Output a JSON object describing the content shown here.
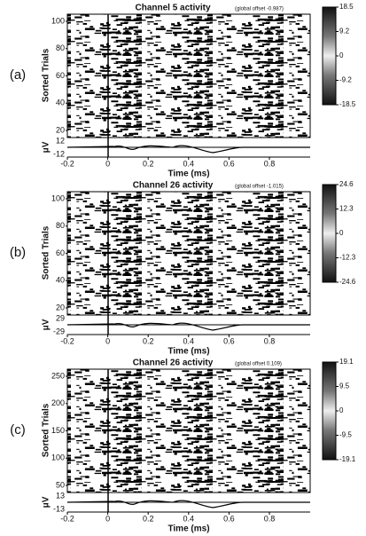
{
  "panels": [
    {
      "label": "(a)",
      "title": "Channel 5 activity",
      "note": "(global offset -0.987)",
      "y_label": "Sorted Trials",
      "y_ticks": [
        "100",
        "80",
        "60",
        "40",
        "20"
      ],
      "erp_label": "μV",
      "erp_ticks": [
        "12",
        "-12"
      ],
      "x_ticks": [
        "-0.2",
        "0",
        "0.2",
        "0.4",
        "0.6",
        "0.8"
      ],
      "x_label": "Time (ms)",
      "colorbar_ticks": [
        "18.5",
        "9.2",
        "0",
        "-9.2",
        "-18.5"
      ]
    },
    {
      "label": "(b)",
      "title": "Channel 26 activity",
      "note": "(global offset -1.015)",
      "y_label": "Sorted Trials",
      "y_ticks": [
        "100",
        "80",
        "60",
        "40",
        "20"
      ],
      "erp_label": "μV",
      "erp_ticks": [
        "29",
        "-29"
      ],
      "x_ticks": [
        "-0.2",
        "0",
        "0.2",
        "0.4",
        "0.6",
        "0.8"
      ],
      "x_label": "Time (ms)",
      "colorbar_ticks": [
        "24.6",
        "12.3",
        "0",
        "-12.3",
        "-24.6"
      ]
    },
    {
      "label": "(c)",
      "title": "Channel 26 activity",
      "note": "(global offset 0.109)",
      "y_label": "Sorted Trials",
      "y_ticks": [
        "250",
        "200",
        "150",
        "100",
        "50"
      ],
      "erp_label": "μV",
      "erp_ticks": [
        "13",
        "-13"
      ],
      "x_ticks": [
        "-0.2",
        "0",
        "0.2",
        "0.4",
        "0.6",
        "0.8"
      ],
      "x_label": "Time (ms)",
      "colorbar_ticks": [
        "19.1",
        "9.5",
        "0",
        "-9.5",
        "-19.1"
      ]
    }
  ]
}
